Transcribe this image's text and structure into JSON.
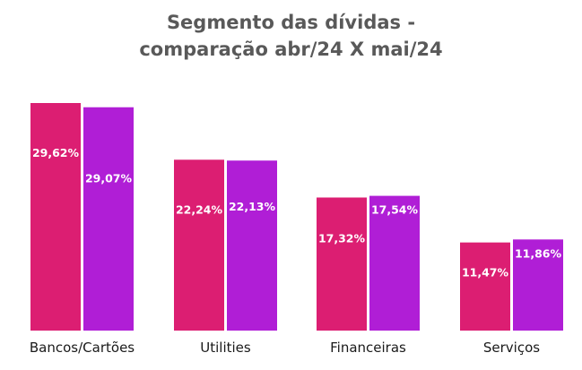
{
  "chart_data": {
    "type": "bar",
    "title": "Segmento das dívidas - comparação abr/24 X mai/24",
    "title_lines": [
      "Segmento das dívidas -",
      "comparação abr/24 X mai/24"
    ],
    "xlabel": "",
    "ylabel": "",
    "ylim": [
      0,
      30
    ],
    "grid": false,
    "categories": [
      "Bancos/Cartões",
      "Utilities",
      "Financeiras",
      "Serviços"
    ],
    "series": [
      {
        "name": "abr/24",
        "color": "#dc1e72",
        "values": [
          29.62,
          22.24,
          17.32,
          11.47
        ],
        "labels": [
          "29,62%",
          "22,24%",
          "17,32%",
          "11,47%"
        ]
      },
      {
        "name": "mai/24",
        "color": "#b01ed6",
        "values": [
          29.07,
          22.13,
          17.54,
          11.86
        ],
        "labels": [
          "29,07%",
          "22,13%",
          "17,54%",
          "11,86%"
        ]
      }
    ]
  }
}
